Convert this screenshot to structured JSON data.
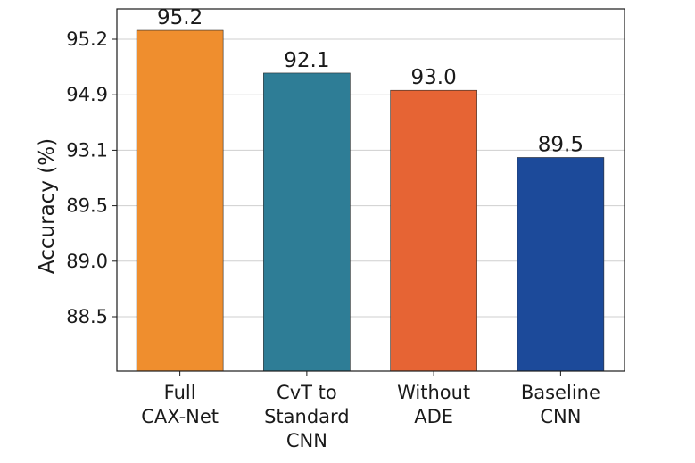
{
  "chart_data": {
    "type": "bar",
    "title": "",
    "xlabel": "",
    "ylabel": "Accuracy (%)",
    "categories": [
      [
        "Full",
        "CAX-Net"
      ],
      [
        "CvT to",
        "Standard",
        "CNN"
      ],
      [
        "Without",
        "ADE"
      ],
      [
        "Baseline",
        "CNN"
      ]
    ],
    "values": [
      95.2,
      92.1,
      93.0,
      89.5
    ],
    "value_labels": [
      "95.2",
      "92.1",
      "93.0",
      "89.5"
    ],
    "bar_colors": [
      "#ef8e2e",
      "#2e7d96",
      "#e66434",
      "#1c4a9a"
    ],
    "yticks": [
      "88.5",
      "89.0",
      "89.5",
      "93.1",
      "94.9",
      "95.2"
    ],
    "grid": true,
    "legend": "none"
  }
}
